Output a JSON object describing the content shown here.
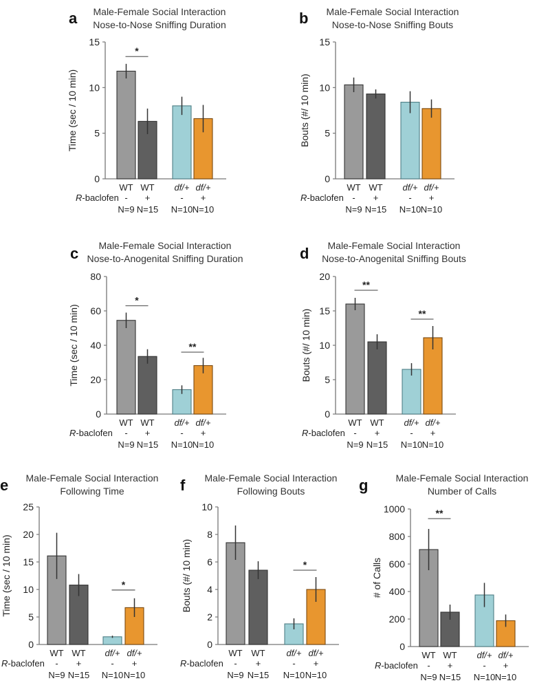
{
  "figure": {
    "row_label": "R-baclofen",
    "row_label_prefix": "R",
    "row_label_suffix": "-baclofen"
  },
  "chart_data": [
    {
      "panel": "a",
      "type": "bar",
      "title": "Male-Female Social Interaction",
      "subtitle": "Nose-to-Nose Sniffing Duration",
      "xlabel": "",
      "ylabel": "Time (sec / 10 min)",
      "ylim": [
        0,
        15
      ],
      "yticks": [
        0,
        5,
        10,
        15
      ],
      "categories": [
        "WT",
        "WT",
        "df/+",
        "df/+"
      ],
      "treatment": [
        "-",
        "+",
        "-",
        "+"
      ],
      "n": [
        "N=9",
        "N=15",
        "N=10",
        "N=10"
      ],
      "values": [
        11.8,
        6.3,
        8.0,
        6.6
      ],
      "errors": [
        0.8,
        1.4,
        1.0,
        1.5
      ],
      "colors": [
        "#9a9a9a",
        "#5f5f5f",
        "#9fd0d6",
        "#e8962f"
      ],
      "significance": [
        {
          "between": [
            0,
            1
          ],
          "label": "*",
          "y": 13.4
        }
      ]
    },
    {
      "panel": "b",
      "type": "bar",
      "title": "Male-Female Social Interaction",
      "subtitle": "Nose-to-Nose Sniffing Bouts",
      "xlabel": "",
      "ylabel": "Bouts (#/ 10 min)",
      "ylim": [
        0,
        15
      ],
      "yticks": [
        0,
        5,
        10,
        15
      ],
      "categories": [
        "WT",
        "WT",
        "df/+",
        "df/+"
      ],
      "treatment": [
        "-",
        "+",
        "-",
        "+"
      ],
      "n": [
        "N=9",
        "N=15",
        "N=10",
        "N=10"
      ],
      "values": [
        10.3,
        9.3,
        8.4,
        7.7
      ],
      "errors": [
        0.8,
        0.5,
        1.2,
        1.0
      ],
      "colors": [
        "#9a9a9a",
        "#5f5f5f",
        "#9fd0d6",
        "#e8962f"
      ],
      "significance": []
    },
    {
      "panel": "c",
      "type": "bar",
      "title": "Male-Female Social Interaction",
      "subtitle": "Nose-to-Anogenital Sniffing Duration",
      "xlabel": "",
      "ylabel": "Time (sec / 10 min)",
      "ylim": [
        0,
        80
      ],
      "yticks": [
        0,
        20,
        40,
        60,
        80
      ],
      "categories": [
        "WT",
        "WT",
        "df/+",
        "df/+"
      ],
      "treatment": [
        "-",
        "+",
        "-",
        "+"
      ],
      "n": [
        "N=9",
        "N=15",
        "N=10",
        "N=10"
      ],
      "values": [
        54.5,
        33.5,
        14.2,
        28.2
      ],
      "errors": [
        4.5,
        4.2,
        2.5,
        4.5
      ],
      "colors": [
        "#9a9a9a",
        "#5f5f5f",
        "#9fd0d6",
        "#e8962f"
      ],
      "significance": [
        {
          "between": [
            0,
            1
          ],
          "label": "*",
          "y": 63
        },
        {
          "between": [
            2,
            3
          ],
          "label": "**",
          "y": 36
        }
      ]
    },
    {
      "panel": "d",
      "type": "bar",
      "title": "Male-Female Social Interaction",
      "subtitle": "Nose-to-Anogenital Sniffing Bouts",
      "xlabel": "",
      "ylabel": "Bouts (#/ 10 min)",
      "ylim": [
        0,
        20
      ],
      "yticks": [
        0,
        5,
        10,
        15,
        20
      ],
      "categories": [
        "WT",
        "WT",
        "df/+",
        "df/+"
      ],
      "treatment": [
        "-",
        "+",
        "-",
        "+"
      ],
      "n": [
        "N=9",
        "N=15",
        "N=10",
        "N=10"
      ],
      "values": [
        16.0,
        10.5,
        6.5,
        11.1
      ],
      "errors": [
        0.9,
        1.1,
        0.9,
        1.7
      ],
      "colors": [
        "#9a9a9a",
        "#5f5f5f",
        "#9fd0d6",
        "#e8962f"
      ],
      "significance": [
        {
          "between": [
            0,
            1
          ],
          "label": "**",
          "y": 18.0
        },
        {
          "between": [
            2,
            3
          ],
          "label": "**",
          "y": 13.8
        }
      ]
    },
    {
      "panel": "e",
      "type": "bar",
      "title": "Male-Female Social Interaction",
      "subtitle": "Following Time",
      "xlabel": "",
      "ylabel": "Time (sec / 10 min)",
      "ylim": [
        0,
        25
      ],
      "yticks": [
        0,
        5,
        10,
        15,
        20,
        25
      ],
      "categories": [
        "WT",
        "WT",
        "df/+",
        "df/+"
      ],
      "treatment": [
        "-",
        "+",
        "-",
        "+"
      ],
      "n": [
        "N=9",
        "N=15",
        "N=10",
        "N=10"
      ],
      "values": [
        16.1,
        10.8,
        1.4,
        6.7
      ],
      "errors": [
        4.2,
        2.0,
        0.2,
        1.7
      ],
      "colors": [
        "#9a9a9a",
        "#5f5f5f",
        "#9fd0d6",
        "#e8962f"
      ],
      "significance": [
        {
          "between": [
            2,
            3
          ],
          "label": "*",
          "y": 9.9
        }
      ]
    },
    {
      "panel": "f",
      "type": "bar",
      "title": "Male-Female Social Interaction",
      "subtitle": "Following Bouts",
      "xlabel": "",
      "ylabel": "Bouts (#/ 10 min)",
      "ylim": [
        0,
        10
      ],
      "yticks": [
        0,
        2,
        4,
        6,
        8,
        10
      ],
      "categories": [
        "WT",
        "WT",
        "df/+",
        "df/+"
      ],
      "treatment": [
        "-",
        "+",
        "-",
        "+"
      ],
      "n": [
        "N=9",
        "N=15",
        "N=10",
        "N=10"
      ],
      "values": [
        7.4,
        5.4,
        1.5,
        4.0
      ],
      "errors": [
        1.25,
        0.65,
        0.4,
        0.9
      ],
      "colors": [
        "#9a9a9a",
        "#5f5f5f",
        "#9fd0d6",
        "#e8962f"
      ],
      "significance": [
        {
          "between": [
            2,
            3
          ],
          "label": "*",
          "y": 5.4
        }
      ]
    },
    {
      "panel": "g",
      "type": "bar",
      "title": "Male-Female Social Interaction",
      "subtitle": "Number of Calls",
      "xlabel": "",
      "ylabel": "# of Calls",
      "ylim": [
        0,
        1000
      ],
      "yticks": [
        0,
        200,
        400,
        600,
        800,
        1000
      ],
      "categories": [
        "WT",
        "WT",
        "df/+",
        "df/+"
      ],
      "treatment": [
        "-",
        "+",
        "-",
        "+"
      ],
      "n": [
        "N=9",
        "N=15",
        "N=10",
        "N=10"
      ],
      "values": [
        705,
        250,
        375,
        188
      ],
      "errors": [
        150,
        55,
        88,
        45
      ],
      "colors": [
        "#9a9a9a",
        "#5f5f5f",
        "#9fd0d6",
        "#e8962f"
      ],
      "significance": [
        {
          "between": [
            0,
            1
          ],
          "label": "**",
          "y": 930
        }
      ]
    }
  ]
}
